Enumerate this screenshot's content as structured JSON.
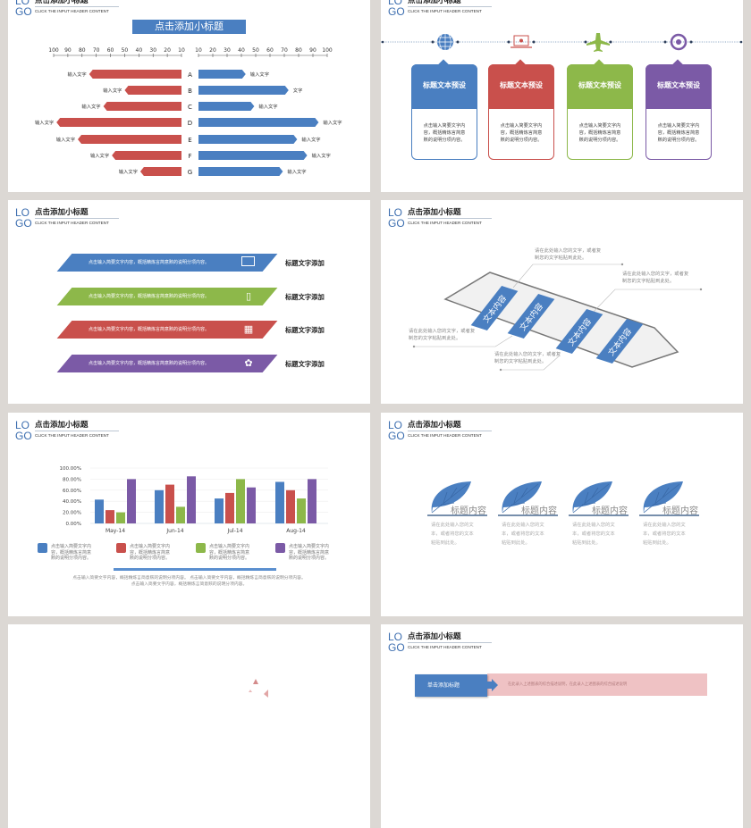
{
  "colors": {
    "blue": "#4a7fc1",
    "red": "#c9504c",
    "green": "#8db84a",
    "purple": "#7b5aa6",
    "logo": "#3e6fb0"
  },
  "header": {
    "logo_top": "LO",
    "logo_bottom": "GO",
    "title": "点击添加小标题",
    "subtitle": "CLICK THE INPUT HEADER CONTENT"
  },
  "slide1": {
    "banner": "点击添加小标题",
    "chart_data": {
      "type": "bar",
      "orientation": "horizontal-butterfly",
      "categories": [
        "A",
        "B",
        "C",
        "D",
        "E",
        "F",
        "G"
      ],
      "left_ticks": [
        "100",
        "90",
        "80",
        "70",
        "60",
        "50",
        "40",
        "30",
        "20",
        "10"
      ],
      "right_ticks": [
        "10",
        "20",
        "30",
        "40",
        "50",
        "60",
        "70",
        "80",
        "90",
        "100"
      ],
      "xlim": [
        10,
        100
      ],
      "series": [
        {
          "side": "left",
          "color": "#c9504c",
          "values": [
            75,
            50,
            65,
            98,
            83,
            59,
            39
          ],
          "labels": [
            "输入文字",
            "输入文字",
            "输入文字",
            "输入文字",
            "输入文字",
            "输入文字",
            "输入文字"
          ]
        },
        {
          "side": "right",
          "color": "#4a7fc1",
          "values": [
            43,
            73,
            49,
            94,
            79,
            86,
            69
          ],
          "labels": [
            "输入文字",
            "文字",
            "输入文字",
            "输入文字",
            "输入文字",
            "输入文字",
            "输入文字"
          ]
        }
      ]
    }
  },
  "slide2": {
    "cards": [
      {
        "icon": "globe-icon",
        "title": "标题文本预设",
        "body": [
          "点击输入简要文字内",
          "容，概括精炼言简意",
          "赅的说明分项内容。"
        ],
        "color": "#4a7fc1"
      },
      {
        "icon": "laptop-icon",
        "title": "标题文本预设",
        "body": [
          "点击输入简要文字内",
          "容，概括精炼言简意",
          "赅的说明分项内容。"
        ],
        "color": "#c9504c"
      },
      {
        "icon": "airplane-icon",
        "title": "标题文本预设",
        "body": [
          "点击输入简要文字内",
          "容，概括精炼言简意",
          "赅的说明分项内容。"
        ],
        "color": "#8db84a"
      },
      {
        "icon": "clock-icon",
        "title": "标题文本预设",
        "body": [
          "点击输入简要文字内",
          "容，概括精炼言简意",
          "赅的说明分项内容。"
        ],
        "color": "#7b5aa6"
      }
    ]
  },
  "slide3": {
    "rows": [
      {
        "text": "点击输入简要文字内容，概括精炼言简意赅的说明分项内容。",
        "label": "标题文字添加",
        "icon": "laptop-icon",
        "color": "#4a7fc1"
      },
      {
        "text": "点击输入简要文字内容，概括精炼言简意赅的说明分项内容。",
        "label": "标题文字添加",
        "icon": "phone-icon",
        "color": "#8db84a"
      },
      {
        "text": "点击输入简要文字内容，概括精炼言简意赅的说明分项内容。",
        "label": "标题文字添加",
        "icon": "calendar-icon",
        "color": "#c9504c"
      },
      {
        "text": "点击输入简要文字内容，概括精炼言简意赅的说明分项内容。",
        "label": "标题文字添加",
        "icon": "puzzle-icon",
        "color": "#7b5aa6"
      }
    ]
  },
  "slide4": {
    "tags": [
      "文本内容",
      "文本内容",
      "文本内容",
      "文本内容"
    ],
    "callouts": [
      [
        "请在此处输入您的文字，或者复",
        "制您的文字粘贴到此处。"
      ],
      [
        "请在此处输入您的文字，或者复",
        "制您的文字粘贴到此处。"
      ],
      [
        "请在此处输入您的文字，或者复",
        "制您的文字粘贴到此处。"
      ],
      [
        "请在此处输入您的文字，或者复",
        "制您的文字粘贴到此处。"
      ]
    ]
  },
  "slide5": {
    "chart_data": {
      "type": "bar",
      "categories": [
        "May-14",
        "Jun-14",
        "Jul-14",
        "Aug-14"
      ],
      "yticks": [
        "100.00%",
        "80.00%",
        "60.00%",
        "40.00%",
        "20.00%",
        "0.00%"
      ],
      "ylim": [
        0,
        100
      ],
      "grid": true,
      "series": [
        {
          "color": "#4a7fc1",
          "values": [
            43,
            60,
            45,
            75
          ]
        },
        {
          "color": "#c9504c",
          "values": [
            24,
            70,
            55,
            60
          ]
        },
        {
          "color": "#8db84a",
          "values": [
            20,
            30,
            80,
            45
          ]
        },
        {
          "color": "#7b5aa6",
          "values": [
            80,
            85,
            65,
            80
          ]
        }
      ]
    },
    "legend": [
      [
        "点击输入简要文字内",
        "容，概括精炼言简意",
        "赅的说明分项内容。"
      ],
      [
        "点击输入简要文字内",
        "容，概括精炼言简意",
        "赅的说明分项内容。"
      ],
      [
        "点击输入简要文字内",
        "容，概括精炼言简意",
        "赅的说明分项内容。"
      ],
      [
        "点击输入简要文字内",
        "容，概括精炼言简意",
        "赅的说明分项内容。"
      ]
    ],
    "paragraph": [
      "点击输入简要文字内容，概括精炼言简意赅的说明分项内容。 点击输入简要文字内容，概括精炼言简意赅的说明分项内容。",
      "点击输入简要文字内容，概括精炼言简意赅的说明分项内容。"
    ]
  },
  "slide6": {
    "items": [
      {
        "title": "标题内容",
        "body": [
          "请在此处输入您的文",
          "本，或者将您的文本",
          "粘贴到此处。"
        ]
      },
      {
        "title": "标题内容",
        "body": [
          "请在此处输入您的文",
          "本，或者将您的文本",
          "粘贴到此处。"
        ]
      },
      {
        "title": "标题内容",
        "body": [
          "请在此处输入您的文",
          "本，或者将您的文本",
          "粘贴到此处。"
        ]
      },
      {
        "title": "标题内容",
        "body": [
          "请在此处输入您的文",
          "本，或者将您的文本",
          "粘贴到此处。"
        ]
      }
    ]
  },
  "slide8": {
    "box_title": "单击添加标题",
    "box_text": "在此录入上述图表的综合描述说明，在此录入上述图表的综合描述说明"
  }
}
